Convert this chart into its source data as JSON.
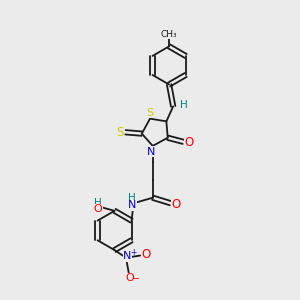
{
  "bg_color": "#ebebeb",
  "bond_color": "#1a1a1a",
  "S_color": "#cccc00",
  "N_color": "#0000cc",
  "O_color": "#ff0000",
  "H_color": "#008080",
  "lw": 1.3,
  "fs": 7.5,
  "xlim": [
    0,
    10
  ],
  "ylim": [
    0,
    11
  ]
}
